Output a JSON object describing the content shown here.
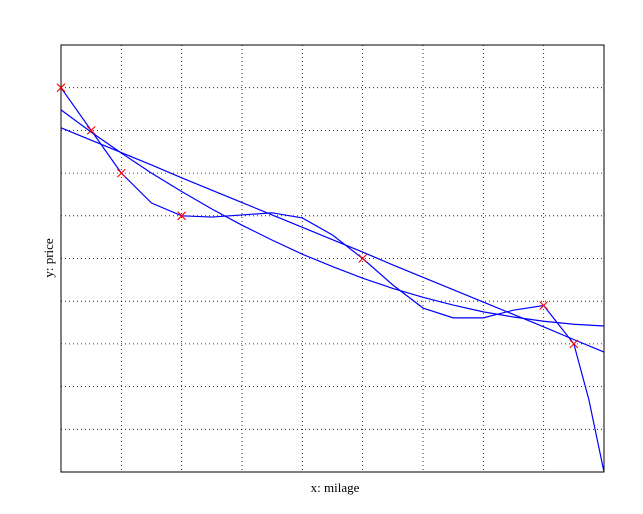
{
  "chart_data": {
    "type": "line",
    "xlabel": "x: milage",
    "ylabel": "y: price",
    "xlim": [
      0,
      9
    ],
    "ylim": [
      0,
      10
    ],
    "xticks": [
      0,
      1,
      2,
      3,
      4,
      5,
      6,
      7,
      8,
      9
    ],
    "yticks": [
      0,
      1,
      2,
      3,
      4,
      5,
      6,
      7,
      8,
      9,
      10
    ],
    "grid": true,
    "series": [
      {
        "kind": "marker",
        "color": "#ff0000",
        "x": [
          0,
          0.5,
          1,
          2,
          5,
          8,
          8.5
        ],
        "values": [
          9.0,
          8.0,
          7.0,
          6.0,
          5.0,
          3.9,
          3.0
        ]
      },
      {
        "kind": "line",
        "color": "#0000ff",
        "x": [
          0,
          0.5,
          1,
          1.5,
          2,
          2.5,
          3,
          3.5,
          4,
          4.5,
          5,
          5.5,
          6,
          6.5,
          7,
          7.5,
          8,
          8.5,
          9
        ],
        "values": [
          8.06,
          7.77,
          7.48,
          7.19,
          6.89,
          6.6,
          6.31,
          6.02,
          5.73,
          5.44,
          5.15,
          4.85,
          4.56,
          4.27,
          3.98,
          3.69,
          3.4,
          3.1,
          2.81
        ]
      },
      {
        "kind": "line",
        "color": "#0000ff",
        "x": [
          0,
          0.5,
          1,
          1.5,
          2,
          2.5,
          3,
          3.5,
          4,
          4.5,
          5,
          5.5,
          6,
          6.5,
          7,
          7.5,
          8,
          8.5,
          9
        ],
        "values": [
          8.48,
          7.96,
          7.47,
          7.0,
          6.57,
          6.16,
          5.78,
          5.43,
          5.1,
          4.81,
          4.54,
          4.3,
          4.09,
          3.91,
          3.75,
          3.63,
          3.53,
          3.46,
          3.42
        ]
      },
      {
        "kind": "line",
        "color": "#0000ff",
        "x": [
          0,
          0.5,
          1,
          1.5,
          2,
          2.5,
          3,
          3.5,
          4,
          4.5,
          5,
          5.5,
          6,
          6.5,
          7,
          7.5,
          8,
          8.5,
          8.75,
          9
        ],
        "values": [
          9.0,
          8.0,
          7.0,
          6.3,
          6.0,
          5.97,
          6.02,
          6.07,
          5.95,
          5.55,
          5.0,
          4.38,
          3.84,
          3.61,
          3.61,
          3.79,
          3.9,
          3.0,
          1.69,
          0
        ]
      }
    ]
  }
}
